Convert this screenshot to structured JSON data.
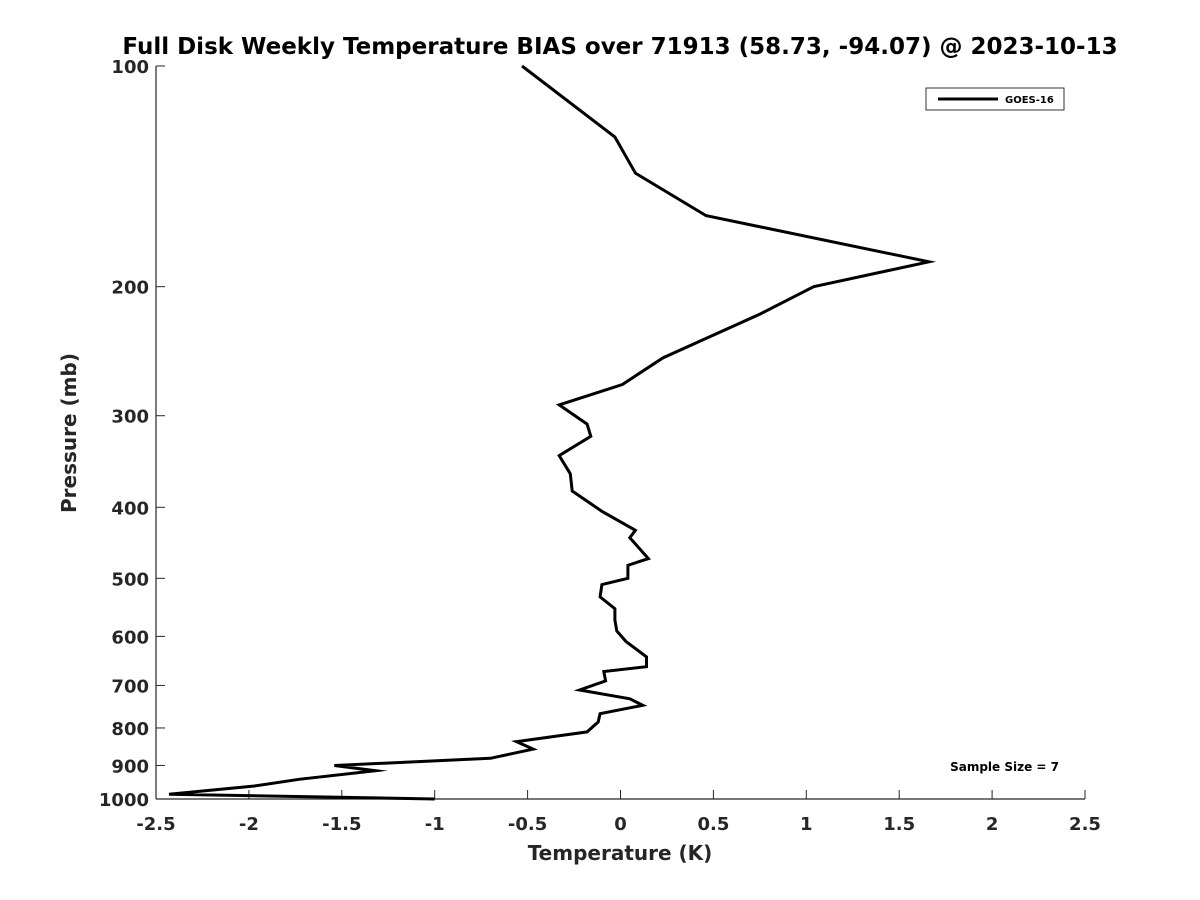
{
  "chart_data": {
    "type": "line",
    "title": "Full Disk Weekly Temperature BIAS over 71913 (58.73, -94.07) @ 2023-10-13",
    "xlabel": "Temperature (K)",
    "ylabel": "Pressure (mb)",
    "xlim": [
      -2.5,
      2.5
    ],
    "ylim": [
      100,
      1000
    ],
    "y_scale": "log",
    "y_reversed": true,
    "x_ticks": [
      -2.5,
      -2,
      -1.5,
      -1,
      -0.5,
      0,
      0.5,
      1,
      1.5,
      2,
      2.5
    ],
    "x_tick_labels": [
      "-2.5",
      "-2",
      "-1.5",
      "-1",
      "-0.5",
      "0",
      "0.5",
      "1",
      "1.5",
      "2",
      "2.5"
    ],
    "y_ticks": [
      100,
      200,
      300,
      400,
      500,
      600,
      700,
      800,
      900,
      1000
    ],
    "y_tick_labels": [
      "100",
      "200",
      "300",
      "400",
      "500",
      "600",
      "700",
      "800",
      "900",
      "1000"
    ],
    "grid": false,
    "legend_position": "top-right",
    "series": [
      {
        "name": "GOES-16",
        "color": "#000000",
        "x": [
          -0.53,
          -0.03,
          0.08,
          0.46,
          1.66,
          1.04,
          0.75,
          0.23,
          0.01,
          -0.33,
          -0.18,
          -0.16,
          -0.33,
          -0.27,
          -0.26,
          -0.1,
          0.08,
          0.05,
          0.15,
          0.04,
          0.04,
          -0.1,
          -0.11,
          -0.03,
          -0.03,
          -0.02,
          0.03,
          0.14,
          0.14,
          -0.09,
          -0.08,
          -0.22,
          0.05,
          0.12,
          -0.11,
          -0.12,
          -0.18,
          -0.56,
          -0.47,
          -0.7,
          -1.54,
          -1.32,
          -1.73,
          -1.97,
          -2.43,
          -1.0
        ],
        "y": [
          100,
          125,
          140,
          160,
          185,
          200,
          218,
          250,
          272,
          290,
          308,
          320,
          340,
          360,
          380,
          405,
          430,
          440,
          470,
          480,
          500,
          510,
          530,
          550,
          570,
          590,
          610,
          640,
          660,
          670,
          690,
          710,
          730,
          745,
          765,
          785,
          810,
          835,
          855,
          880,
          900,
          915,
          940,
          960,
          985,
          1000
        ]
      }
    ],
    "annotations": [
      "Sample Size = 7"
    ]
  }
}
